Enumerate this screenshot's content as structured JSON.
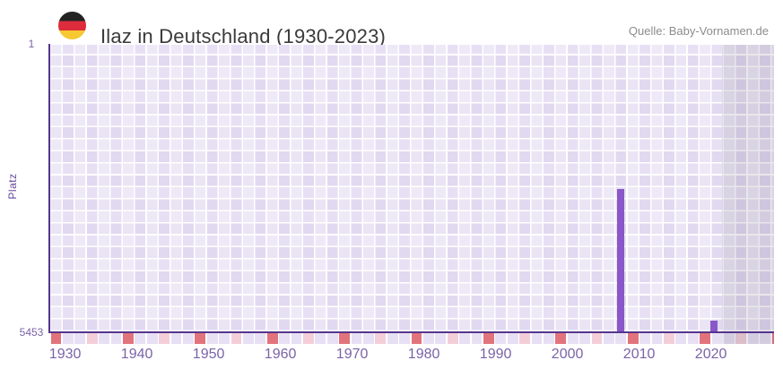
{
  "header": {
    "flag_icon": "german-flag-roundel",
    "title": "Ilaz in Deutschland (1930-2023)",
    "source": "Quelle: Baby-Vornamen.de"
  },
  "chart_data": {
    "type": "bar",
    "title": "Ilaz in Deutschland (1930-2023)",
    "xlabel": "",
    "ylabel": "Platz",
    "y_axis_inverted": true,
    "ylim": [
      1,
      5453
    ],
    "y_tick_labels": [
      "1",
      "5453"
    ],
    "x_tick_labels": [
      "1930",
      "1940",
      "1950",
      "1960",
      "1970",
      "1980",
      "1990",
      "2000",
      "2010",
      "2020"
    ],
    "xlim": [
      1928,
      2029
    ],
    "grid": "checkered-lavender",
    "legend": false,
    "points": [
      {
        "year": 2007,
        "platz": 2750
      },
      {
        "year": 2020,
        "platz": 5250
      }
    ],
    "highlight_band": {
      "from_year": 2022,
      "to": "right-edge",
      "style": "dimmed"
    }
  },
  "colors": {
    "bar": "#8a57c8",
    "axis_line": "#54348c",
    "plot_cell": "#e7e0f4",
    "band_overlay": "rgba(100,92,122,0.15)",
    "tick_red": "#e2737c",
    "tick_pink": "#f3ced9",
    "axis_label": "#7b63a8",
    "y_axis_title": "#66489c",
    "title_text": "#3a3a3a",
    "source_text": "#8c8c8c",
    "flag_black": "#232323",
    "flag_red": "#dd2c3c",
    "flag_gold": "#f6c832",
    "background": "#ffffff"
  }
}
